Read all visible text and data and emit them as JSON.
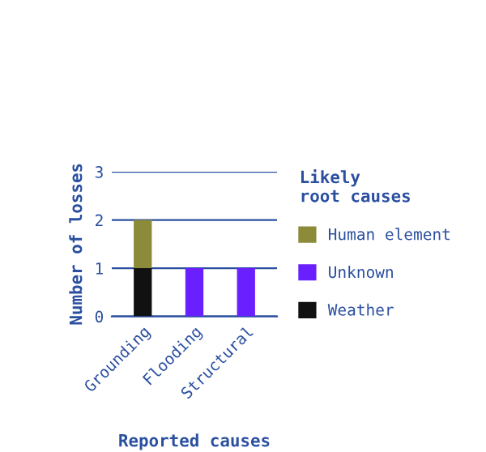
{
  "chart_data": {
    "type": "bar",
    "stacked": true,
    "xlabel": "Reported causes",
    "ylabel": "Number of losses",
    "legend_title": "Likely\nroot causes",
    "categories": [
      "Grounding",
      "Flooding",
      "Structural"
    ],
    "series": [
      {
        "name": "Weather",
        "color": "#111111",
        "values": [
          1,
          0,
          0
        ]
      },
      {
        "name": "Unknown",
        "color": "#6a1fff",
        "values": [
          0,
          1,
          1
        ]
      },
      {
        "name": "Human element",
        "color": "#8b8b3a",
        "values": [
          1,
          0,
          0
        ]
      }
    ],
    "ylim": [
      0,
      3
    ],
    "yticks": [
      0,
      1,
      2,
      3
    ],
    "grid": "y",
    "legend": "right"
  }
}
